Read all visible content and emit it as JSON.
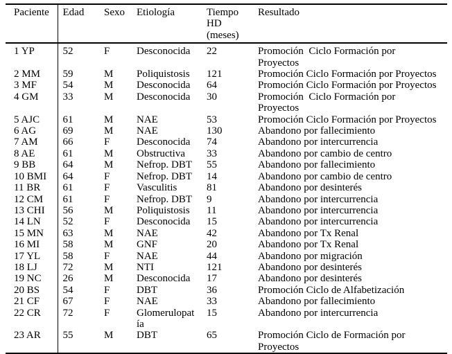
{
  "document": {
    "background_color": "#ffffff",
    "text_color": "#000000",
    "rule_color": "#000000"
  },
  "table": {
    "columns": [
      {
        "key": "paciente",
        "label": "Paciente"
      },
      {
        "key": "edad",
        "label": "Edad"
      },
      {
        "key": "sexo",
        "label": "Sexo"
      },
      {
        "key": "etiologia",
        "label": "Etiología"
      },
      {
        "key": "tiempo",
        "label": "Tiempo\nHD\n(meses)"
      },
      {
        "key": "resultado",
        "label": "Resultado"
      }
    ],
    "rows": [
      {
        "paciente": "1 YP",
        "edad": "52",
        "sexo": "F",
        "etiologia": "Desconocida",
        "tiempo": "22",
        "resultado": "Promoción  Ciclo Formación por\nProyectos"
      },
      {
        "paciente": "2 MM",
        "edad": "59",
        "sexo": "M",
        "etiologia": "Poliquistosis",
        "tiempo": "121",
        "resultado": "Promoción Ciclo Formación por Proyectos"
      },
      {
        "paciente": "3 MF",
        "edad": "54",
        "sexo": "M",
        "etiologia": "Desconocida",
        "tiempo": "64",
        "resultado": "Promoción Ciclo Formación por Proyectos"
      },
      {
        "paciente": "4 GM",
        "edad": "33",
        "sexo": "M",
        "etiologia": "Desconocida",
        "tiempo": "30",
        "resultado": "Promoción  Ciclo Formación por\nProyectos"
      },
      {
        "paciente": "5 AJC",
        "edad": "61",
        "sexo": "M",
        "etiologia": "NAE",
        "tiempo": "53",
        "resultado": "Promoción Ciclo Formación por Proyectos"
      },
      {
        "paciente": "6 AG",
        "edad": "69",
        "sexo": "M",
        "etiologia": "NAE",
        "tiempo": "130",
        "resultado": "Abandono por fallecimiento"
      },
      {
        "paciente": "7 AM",
        "edad": "66",
        "sexo": "F",
        "etiologia": "Desconocida",
        "tiempo": "74",
        "resultado": "Abandono por intercurrencia"
      },
      {
        "paciente": "8 AE",
        "edad": "61",
        "sexo": "M",
        "etiologia": "Obstructiva",
        "tiempo": "33",
        "resultado": "Abandono por cambio de centro"
      },
      {
        "paciente": "9 BB",
        "edad": "64",
        "sexo": "M",
        "etiologia": "Nefrop. DBT",
        "tiempo": "55",
        "resultado": "Abandono por fallecimiento"
      },
      {
        "paciente": "10 BMI",
        "edad": "64",
        "sexo": "F",
        "etiologia": "Nefrop. DBT",
        "tiempo": "14",
        "resultado": "Abandono por cambio de centro"
      },
      {
        "paciente": "11 BR",
        "edad": "61",
        "sexo": "F",
        "etiologia": "Vasculitis",
        "tiempo": "81",
        "resultado": "Abandono por desinterés"
      },
      {
        "paciente": "12 CM",
        "edad": "61",
        "sexo": "F",
        "etiologia": "Nefrop. DBT",
        "tiempo": "9",
        "resultado": "Abandono por intercurrencia"
      },
      {
        "paciente": "13 CHI",
        "edad": "56",
        "sexo": "M",
        "etiologia": "Poliquistosis",
        "tiempo": "11",
        "resultado": "Abandono por intercurrencia"
      },
      {
        "paciente": "14 LN",
        "edad": "52",
        "sexo": "F",
        "etiologia": "Desconocida",
        "tiempo": "15",
        "resultado": "Abandono por intercurrencia"
      },
      {
        "paciente": "15 MN",
        "edad": "63",
        "sexo": "M",
        "etiologia": "NAE",
        "tiempo": "42",
        "resultado": "Abandono por Tx Renal"
      },
      {
        "paciente": "16 MI",
        "edad": "58",
        "sexo": "M",
        "etiologia": "GNF",
        "tiempo": "20",
        "resultado": "Abandono por Tx Renal"
      },
      {
        "paciente": "17 YL",
        "edad": "58",
        "sexo": "F",
        "etiologia": "NAE",
        "tiempo": "44",
        "resultado": "Abandono por migración"
      },
      {
        "paciente": "18 LJ",
        "edad": "72",
        "sexo": "M",
        "etiologia": "NTI",
        "tiempo": "121",
        "resultado": "Abandono por desinterés"
      },
      {
        "paciente": "19 NC",
        "edad": "26",
        "sexo": "M",
        "etiologia": "Desconocida",
        "tiempo": "17",
        "resultado": "Abandono por desinterés"
      },
      {
        "paciente": "20 BS",
        "edad": "54",
        "sexo": "F",
        "etiologia": "DBT",
        "tiempo": "36",
        "resultado": "Promoción Ciclo de Alfabetización"
      },
      {
        "paciente": "21 CF",
        "edad": "67",
        "sexo": "F",
        "etiologia": "NAE",
        "tiempo": "33",
        "resultado": "Abandono por fallecimiento"
      },
      {
        "paciente": "22 CR",
        "edad": "72",
        "sexo": "F",
        "etiologia": "Glomerulopatía",
        "tiempo": "15",
        "resultado": "Abandono por intercurrencia"
      },
      {
        "paciente": "23 AR",
        "edad": "55",
        "sexo": "M",
        "etiologia": "DBT",
        "tiempo": "65",
        "resultado": "Promoción Ciclo de Formación por\nProyectos"
      }
    ]
  }
}
